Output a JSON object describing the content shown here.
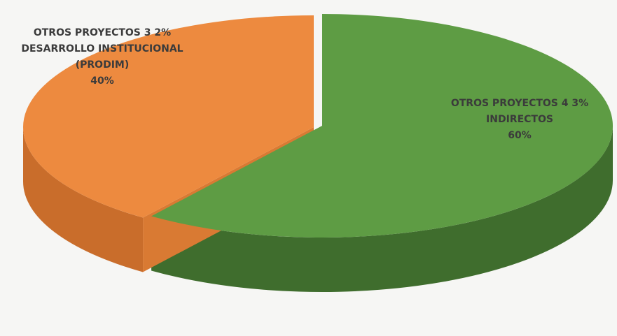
{
  "chart_data": {
    "type": "pie",
    "style": "3d",
    "slices": [
      {
        "category": "OTROS PROYECTOS 4 3%",
        "name": "INDIRECTOS",
        "value": 60,
        "percent_label": "60%",
        "color": "#5e9c44",
        "side_color": "#3f6d2d"
      },
      {
        "category": "OTROS PROYECTOS 3 2%",
        "name": "DESARROLLO INSTITUCIONAL",
        "name_line2": "(PRODIM)",
        "value": 40,
        "percent_label": "40%",
        "color": "#ed8a3f",
        "side_color": "#c96d2b"
      }
    ]
  }
}
